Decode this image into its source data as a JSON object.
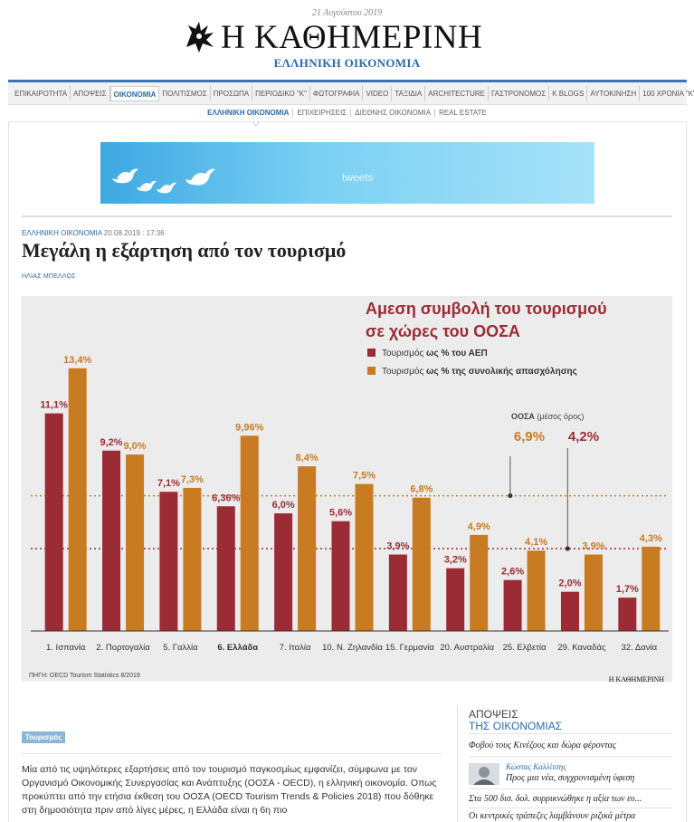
{
  "header": {
    "date": "21 Αυγούστου 2019",
    "brand": "Η ΚΑΘΗΜΕΡΙΝΗ",
    "section": "ΕΛΛΗΝΙΚΗ ΟΙΚΟΝΟΜΙΑ"
  },
  "nav": {
    "items": [
      "ΕΠΙΚΑΙΡΟΤΗΤΑ",
      "ΑΠΟΨΕΙΣ",
      "ΟΙΚΟΝΟΜΙΑ",
      "ΠΟΛΙΤΙΣΜΟΣ",
      "ΠΡΟΣΩΠΑ",
      "ΠΕΡΙΟΔΙΚΟ \"Κ\"",
      "ΦΩΤΟΓΡΑΦΙΑ",
      "VIDEO",
      "ΤΑΞΙΔΙΑ",
      "ARCHITECTURE",
      "ΓΑΣΤΡΟΝΟΜΟΣ",
      "K BLOGS",
      "ΑΥΤΟΚΙΝΗΣΗ",
      "100 ΧΡΟΝΙΑ \"Κ\""
    ],
    "active": "ΟΙΚΟΝΟΜΙΑ"
  },
  "subnav": {
    "items": [
      "ΕΛΛΗΝΙΚΗ ΟΙΚΟΝΟΜΙΑ",
      "ΕΠΙΧΕΙΡΗΣΕΙΣ",
      "ΔΙΕΘΝΗΣ ΟΙΚΟΝΟΜΙΑ",
      "REAL ESTATE"
    ],
    "active": "ΕΛΛΗΝΙΚΗ ΟΙΚΟΝΟΜΙΑ"
  },
  "banner": {
    "text": "tweets"
  },
  "article": {
    "category": "ΕΛΛΗΝΙΚΗ ΟΙΚΟΝΟΜΙΑ",
    "timestamp": "20.08.2019 : 17:36",
    "title": "Μεγάλη η εξάρτηση από τον τουρισμό",
    "author": "ΗΛΙΑΣ ΜΠΕΛΛΟΣ",
    "tag": "Τουρισμός",
    "body": "Μία από τις υψηλότερες εξαρτήσεις από τον τουρισμό παγκοσμίως εμφανίζει, σύμφωνα με τον Οργανισμό Οικονομικής Συνεργασίας και Ανάπτυξης (ΟΟΣΑ - OECD), η ελληνική οικονομία. Οπως προκύπτει από την ετήσια έκθεση του ΟΟΣΑ (OECD Tourism Trends & Policies 2018) που δόθηκε στη δημοσιότητα πριν από λίγες μέρες, η Ελλάδα είναι η 6η πιο"
  },
  "chart_data": {
    "type": "bar",
    "title_line1": "Αμεση συμβολή του τουρισμού",
    "title_line2": "σε χώρες του ΟΟΣΑ",
    "categories": [
      "1. Ισπανία",
      "2. Πορτογαλία",
      "5. Γαλλία",
      "6. Ελλάδα",
      "7. Ιταλία",
      "10. Ν. Ζηλανδία",
      "15. Γερμανία",
      "20. Αυστραλία",
      "25. Ελβετία",
      "29. Καναδάς",
      "32. Δανία"
    ],
    "highlight_category": "6. Ελλάδα",
    "series": [
      {
        "name": "Τουρισμός ως % του ΑΕΠ",
        "name_plain": "Τουρισμός ",
        "name_bold": "ως % του ΑΕΠ",
        "color": "#9b2b35",
        "values": [
          11.1,
          9.2,
          7.1,
          6.36,
          6.0,
          5.6,
          3.9,
          3.2,
          2.6,
          2.0,
          1.7
        ],
        "labels": [
          "11,1%",
          "9,2%",
          "7,1%",
          "6,36%",
          "6,0%",
          "5,6%",
          "3,9%",
          "3,2%",
          "2,6%",
          "2,0%",
          "1,7%"
        ]
      },
      {
        "name": "Τουρισμός ως % της συνολικής απασχόλησης",
        "name_plain": "Τουρισμός ",
        "name_bold": "ως % της συνολικής απασχόλησης",
        "color": "#c97b22",
        "values": [
          13.4,
          9.0,
          7.3,
          9.96,
          8.4,
          7.5,
          6.8,
          4.9,
          4.1,
          3.9,
          4.3
        ],
        "labels": [
          "13,4%",
          "9,0%",
          "7,3%",
          "9,96%",
          "8,4%",
          "7,5%",
          "6,8%",
          "4,9%",
          "4,1%",
          "3,9%",
          "4,3%"
        ]
      }
    ],
    "reference": {
      "label_bold": "ΟΟΣΑ",
      "label_rest": " (μέσος όρος)",
      "employment_avg": 6.9,
      "employment_label": "6,9%",
      "gdp_avg": 4.2,
      "gdp_label": "4,2%"
    },
    "ylim": [
      0,
      14.5
    ],
    "source": "ΠΗΓΗ: OECD Tourism Statistics 8/2019",
    "credit": "Η ΚΑΘΗΜΕΡΙΝΗ",
    "colors": {
      "gdp": "#9b2b35",
      "employment": "#c97b22",
      "bg": "#ececec"
    }
  },
  "sidebar": {
    "heading_line1": "ΑΠΟΨΕΙΣ",
    "heading_line2": "ΤΗΣ ΟΙΚΟΝΟΜΙΑΣ",
    "items": [
      {
        "text": "Φοβού τους Κινέζους και δώρα φέροντας"
      },
      {
        "author": "Κώστας Καλλίτσης",
        "text": "Προς μια νέα, συγχρονισμένη ύφεση"
      },
      {
        "text": "Στα 500 δισ. δολ. συρρικνώθηκε η αξία των ευ..."
      },
      {
        "text": "Οι κεντρικές τράπεζες λαμβάνουν ριζικά μέτρα"
      }
    ]
  }
}
